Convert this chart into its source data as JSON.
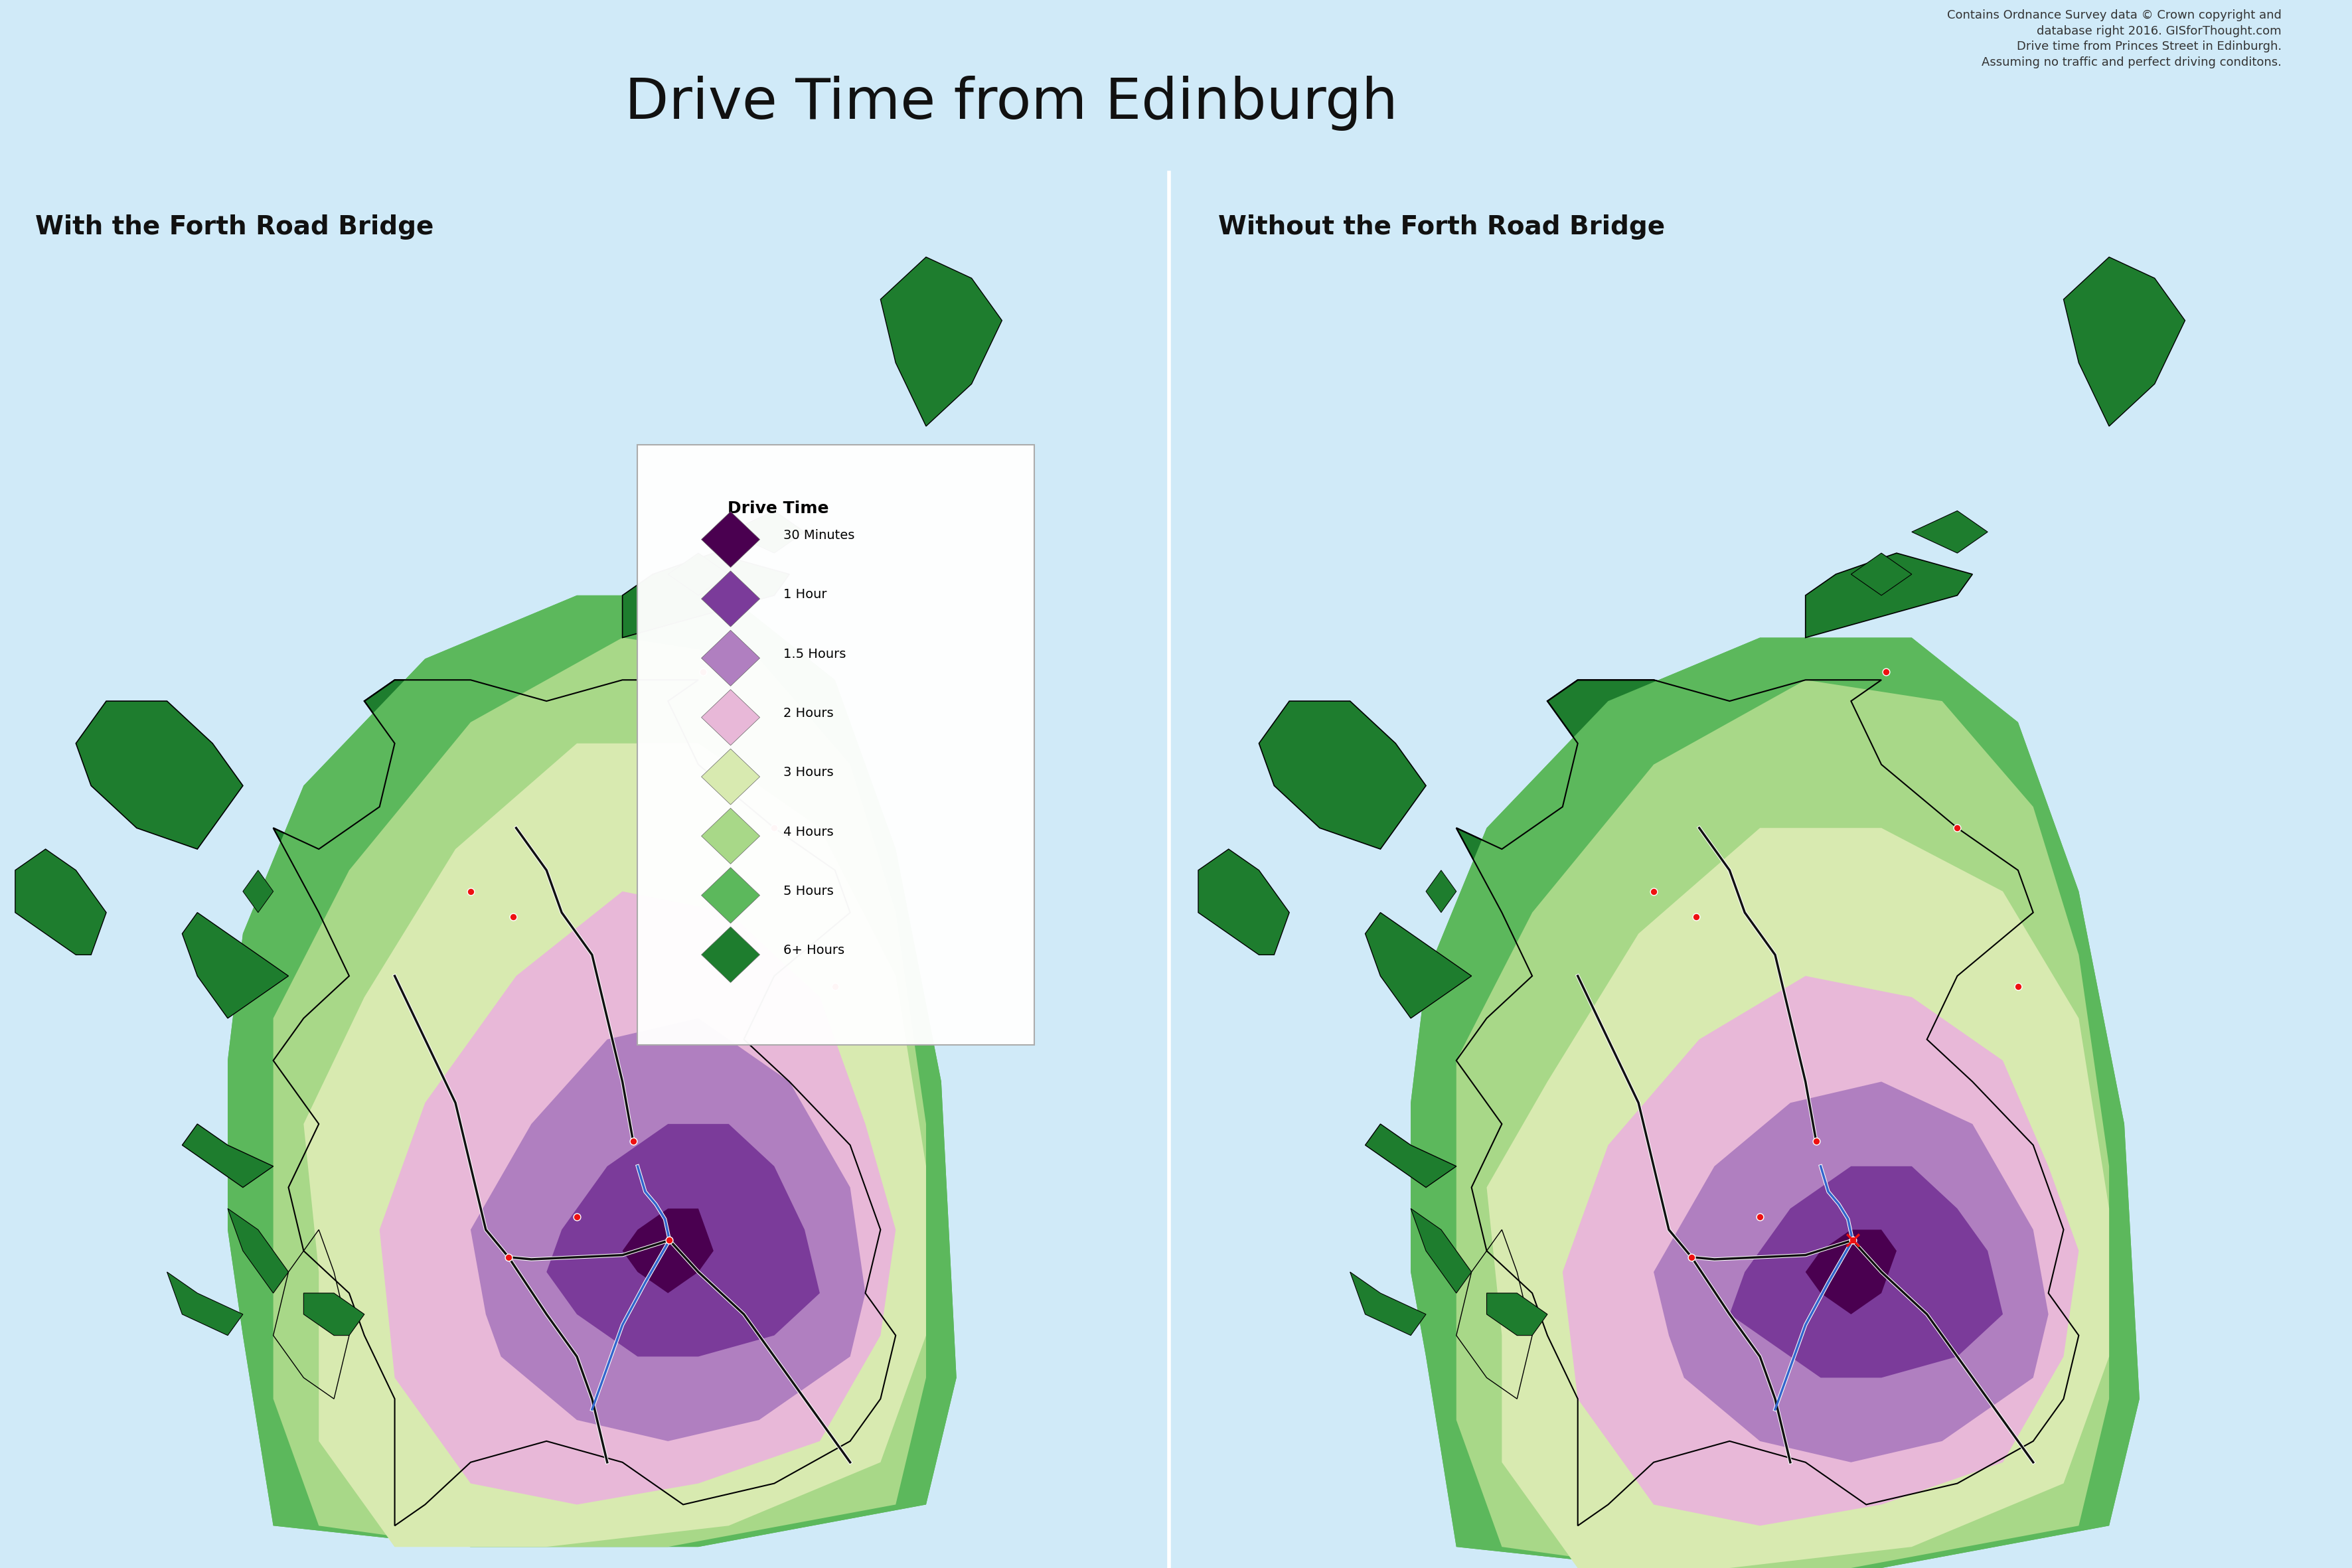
{
  "title": "Drive Time from Edinburgh",
  "subtitle_right": "Contains Ordnance Survey data © Crown copyright and\ndatabase right 2016. GISforThought.com\nDrive time from Princes Street in Edinburgh.\nAssuming no traffic and perfect driving conditons.",
  "panel_left_title": "With the Forth Road Bridge",
  "panel_right_title": "Without the Forth Road Bridge",
  "background_color": "#87CEEB",
  "header_bg": "#d0eaf8",
  "land_base": "#1e7d2e",
  "legend_title": "Drive Time",
  "legend_items": [
    {
      "label": "30 Minutes",
      "color": "#4a0050"
    },
    {
      "label": "1 Hour",
      "color": "#7b3b9a"
    },
    {
      "label": "1.5 Hours",
      "color": "#b07fc0"
    },
    {
      "label": "2 Hours",
      "color": "#e8b8d8"
    },
    {
      "label": "3 Hours",
      "color": "#d8eab0"
    },
    {
      "label": "4 Hours",
      "color": "#a8d888"
    },
    {
      "label": "5 Hours",
      "color": "#5cb85c"
    },
    {
      "label": "6+ Hours",
      "color": "#1e7d2e"
    }
  ],
  "road_blue": "#3366cc",
  "road_black": "#111111",
  "dot_color": "#ee1111",
  "dot_size": 60,
  "separator_color": "#ffffff"
}
